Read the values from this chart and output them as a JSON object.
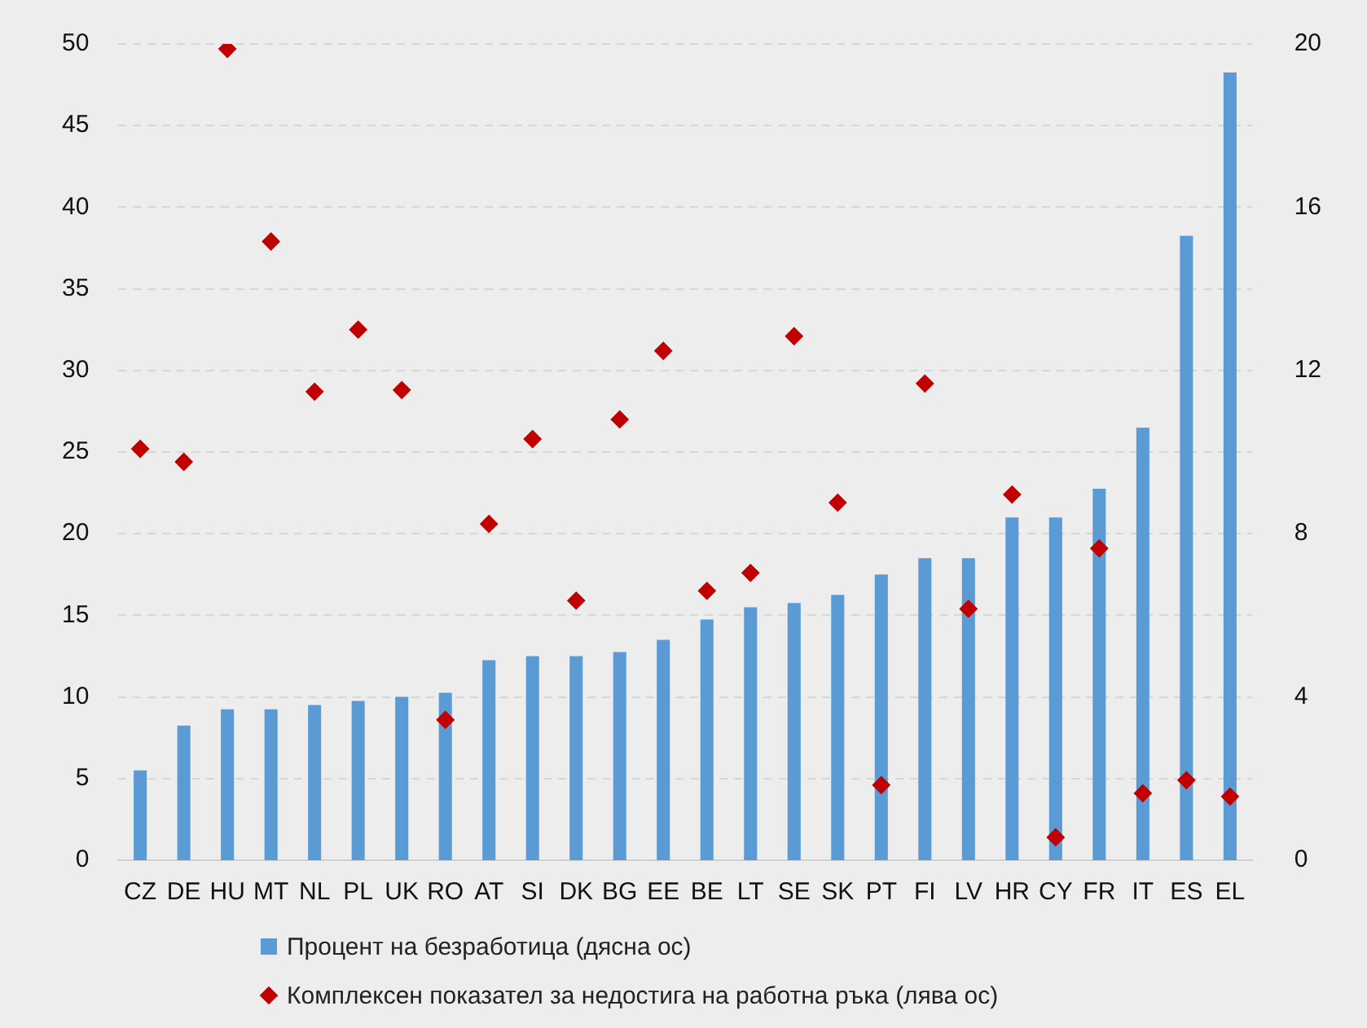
{
  "chart_data": {
    "type": "bar",
    "categories": [
      "CZ",
      "DE",
      "HU",
      "MT",
      "NL",
      "PL",
      "UK",
      "RO",
      "AT",
      "SI",
      "DK",
      "BG",
      "EE",
      "BE",
      "LT",
      "SE",
      "SK",
      "PT",
      "FI",
      "LV",
      "HR",
      "CY",
      "FR",
      "IT",
      "ES",
      "EL"
    ],
    "series": [
      {
        "name": "Процент на безработица (дясна ос)",
        "axis": "y2",
        "color": "#5b9bd5",
        "values": [
          2.2,
          3.3,
          3.7,
          3.7,
          3.8,
          3.9,
          4.0,
          4.1,
          4.9,
          5.0,
          5.0,
          5.1,
          5.4,
          5.9,
          6.2,
          6.3,
          6.5,
          7.0,
          7.4,
          7.4,
          8.4,
          8.4,
          9.1,
          10.6,
          15.3,
          19.3
        ]
      },
      {
        "name": "Комплексен показател за недостига на работна ръка (лява ос)",
        "type": "scatter",
        "axis": "y",
        "color": "#c00000",
        "marker": "diamond",
        "values": [
          25.2,
          24.4,
          49.7,
          37.9,
          28.7,
          32.5,
          28.8,
          8.6,
          20.6,
          25.8,
          15.9,
          27.0,
          31.2,
          16.5,
          17.6,
          32.1,
          21.9,
          4.6,
          29.2,
          15.4,
          22.4,
          1.4,
          19.1,
          4.1,
          4.9,
          3.9
        ]
      }
    ],
    "ylim": [
      0,
      50
    ],
    "yticks": [
      0,
      5,
      10,
      15,
      20,
      25,
      30,
      35,
      40,
      45,
      50
    ],
    "y2lim": [
      0,
      20
    ],
    "y2ticks": [
      0,
      4,
      8,
      12,
      16,
      20
    ],
    "grid": "y",
    "legend": "bottom"
  }
}
